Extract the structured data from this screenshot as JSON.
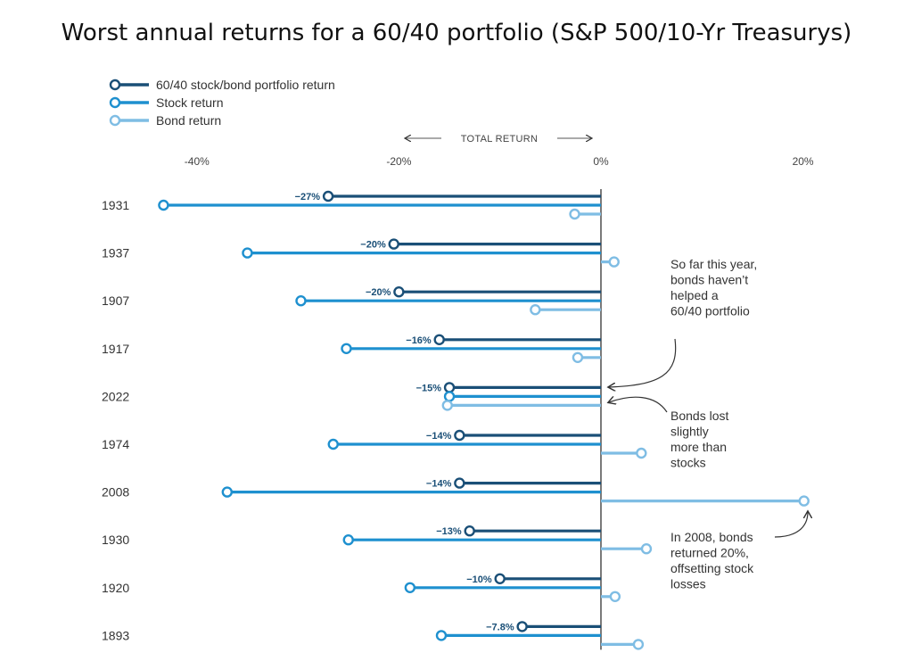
{
  "title": "Worst annual returns for a 60/40 portfolio (S&P 500/10-Yr Treasurys)",
  "chart_data": {
    "type": "bar",
    "orientation": "horizontal",
    "axis_caption": "TOTAL RETURN",
    "xlim": [
      -45,
      22
    ],
    "ticks": [
      -40,
      -20,
      0,
      20
    ],
    "tick_labels": [
      "-40%",
      "-20%",
      "0%",
      "20%"
    ],
    "categories": [
      "1931",
      "1937",
      "1907",
      "1917",
      "2022",
      "1974",
      "2008",
      "1930",
      "1920",
      "1893"
    ],
    "series": [
      {
        "name": "60/40 stock/bond portfolio return",
        "color": "#1a4f77",
        "values": [
          -27,
          -20.5,
          -20,
          -16,
          -15,
          -14,
          -14,
          -13,
          -10,
          -7.8
        ]
      },
      {
        "name": "Stock return",
        "color": "#1e90cf",
        "values": [
          -43.3,
          -35,
          -29.7,
          -25.2,
          -15,
          -26.5,
          -37,
          -25,
          -18.9,
          -15.8
        ]
      },
      {
        "name": "Bond return",
        "color": "#7fbde4",
        "values": [
          -2.6,
          1.3,
          -6.5,
          -2.3,
          -15.2,
          4,
          20.1,
          4.5,
          1.4,
          3.7
        ]
      }
    ],
    "data_labels": [
      "−27%",
      "−20%",
      "−20%",
      "−16%",
      "−15%",
      "−14%",
      "−14%",
      "−13%",
      "−10%",
      "−7.8%"
    ],
    "legend_position": "top-left",
    "annotations": [
      {
        "lines": [
          "So far this year,",
          "bonds haven’t",
          "helped a",
          "60/40 portfolio"
        ]
      },
      {
        "lines": [
          "Bonds lost",
          "slightly",
          "more than",
          "stocks"
        ]
      },
      {
        "lines": [
          "In 2008, bonds",
          "returned 20%,",
          "offsetting stock",
          "losses"
        ]
      }
    ]
  }
}
